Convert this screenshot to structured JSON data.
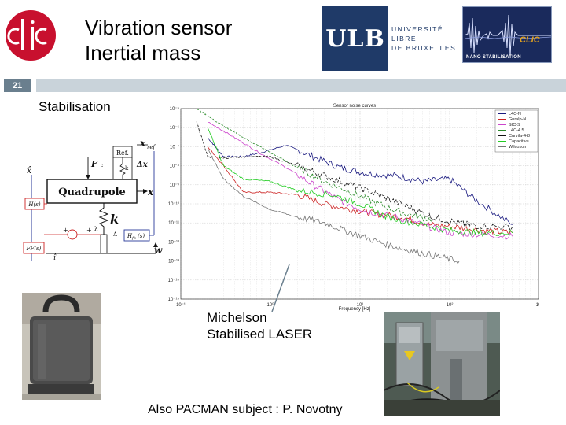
{
  "header": {
    "title_line1": "Vibration sensor",
    "title_line2": "Inertial mass",
    "logos": {
      "clic": "CLIC",
      "ulb_mark": "ULB",
      "ulb_text": [
        "UNIVERSITÉ",
        "LIBRE",
        "DE BRUXELLES"
      ],
      "nano_mark": "CLIC",
      "nano_caption": "NANO STABILISATION"
    }
  },
  "slide_number": "21",
  "subtitle": "Stabilisation",
  "diagram": {
    "labels": {
      "xhat": "x̂",
      "xref": "x",
      "xref_sub": "ref",
      "ref_box": "Ref.",
      "F": "F",
      "c": "c",
      "k_small": "k",
      "delta_x": "Δx",
      "quadrupole": "Quadrupole",
      "x": "x",
      "k": "k",
      "H_box": "H(s)",
      "Hfb_box": "H",
      "Hfb_sub": "fb",
      "Hfb_tail": "(s)",
      "FF_box": "FF(s)",
      "lambda": "λ",
      "delta": "Δ",
      "w": "w",
      "i_hat": "î",
      "plus1": "+",
      "plus2": "+"
    }
  },
  "captions": {
    "laser_line1": "Michelson",
    "laser_line2": "Stabilised LASER"
  },
  "footer_note": "Also PACMAN subject : P. Novotny",
  "colors": {
    "slide_box": "#6a7f8e",
    "slide_rule": "#c9d3da",
    "clic_red": "#c8102e",
    "ulb_blue": "#1f3a68",
    "nano_bg": "#1a2a5c"
  },
  "chart_data": {
    "type": "line",
    "title": "Sensor noise curves",
    "xlabel": "Frequency [Hz]",
    "ylabel": "",
    "xscale": "log",
    "yscale": "log",
    "xlim": [
      0.1,
      1000
    ],
    "ylim": [
      1e-15,
      1e-05
    ],
    "x_ticks": [
      "10⁻¹",
      "10⁰",
      "10¹",
      "10²",
      "10³"
    ],
    "x_tick_values": [
      0.1,
      1,
      10,
      100,
      1000
    ],
    "y_ticks": [
      "10⁻⁵",
      "10⁻⁶",
      "10⁻⁷",
      "10⁻⁸",
      "10⁻⁹",
      "10⁻¹⁰",
      "10⁻¹¹",
      "10⁻¹²",
      "10⁻¹³",
      "10⁻¹⁴",
      "10⁻¹⁵"
    ],
    "y_tick_values": [
      1e-05,
      1e-06,
      1e-07,
      1e-08,
      1e-09,
      1e-10,
      1e-11,
      1e-12,
      1e-13,
      1e-14,
      1e-15
    ],
    "grid": true,
    "legend_position": "top-right",
    "series": [
      {
        "name": "L4C-N",
        "color": "#1a1a80",
        "x": [
          0.2,
          0.3,
          0.5,
          0.8,
          1.5,
          3,
          6,
          12,
          25,
          50,
          100,
          200,
          500
        ],
        "y": [
          3e-07,
          3e-08,
          3e-08,
          5e-08,
          1.2e-07,
          3e-08,
          8e-09,
          4e-09,
          3e-09,
          1.5e-09,
          2e-09,
          1.5e-10,
          8e-12
        ]
      },
      {
        "name": "Guralp-N",
        "color": "#cc2222",
        "x": [
          0.2,
          0.3,
          0.5,
          1,
          2,
          4,
          8,
          15,
          30,
          60,
          120,
          250,
          500
        ],
        "y": [
          1e-07,
          1e-08,
          4e-10,
          4e-10,
          3e-10,
          1e-10,
          5e-11,
          3e-11,
          2e-11,
          8e-12,
          6e-12,
          4e-12,
          3e-12
        ]
      },
      {
        "name": "SIC-S",
        "color": "#cc44cc",
        "x": [
          0.2,
          0.4,
          0.8,
          1.5,
          3,
          6,
          12,
          25,
          50,
          100,
          200,
          500
        ],
        "y": [
          2e-06,
          3e-07,
          4e-08,
          8e-09,
          1e-09,
          1.5e-10,
          4e-11,
          2e-11,
          8e-12,
          3e-12,
          2.5e-12,
          2e-12
        ]
      },
      {
        "name": "L4C-4.5",
        "color": "#2a8a2a",
        "x": [
          0.15,
          0.25,
          0.5,
          1,
          2,
          4,
          8,
          16,
          32,
          64
        ],
        "y": [
          1e-05,
          2e-06,
          3e-07,
          5e-08,
          8e-09,
          1.5e-09,
          4e-10,
          1e-10,
          3e-11,
          1.5e-11
        ]
      },
      {
        "name": "Curvila-4-8",
        "color": "#111111",
        "x": [
          0.15,
          0.2,
          0.3,
          0.5,
          1,
          2,
          4,
          8,
          16,
          32,
          64,
          128,
          200,
          500
        ],
        "y": [
          2e-06,
          3e-08,
          2.5e-08,
          3e-08,
          3e-08,
          1e-08,
          3e-09,
          1e-09,
          3e-10,
          8e-11,
          2e-11,
          1e-11,
          7e-12,
          6e-12
        ]
      },
      {
        "name": "Capacitive",
        "color": "#22cc22",
        "x": [
          0.2,
          0.3,
          0.5,
          1,
          2,
          5,
          10,
          20,
          50,
          100,
          200,
          500
        ],
        "y": [
          1e-06,
          1e-08,
          2e-09,
          1.5e-09,
          5e-10,
          3e-10,
          1e-10,
          2e-11,
          8e-12,
          4e-12,
          3e-12,
          3e-12
        ]
      },
      {
        "name": "Wilcoxon",
        "color": "#777777",
        "x": [
          0.2,
          0.3,
          0.5,
          1,
          2,
          4,
          8,
          16,
          32,
          64,
          128
        ],
        "y": [
          8e-08,
          2e-09,
          2.5e-10,
          5e-11,
          2e-11,
          1e-11,
          3e-12,
          1e-12,
          4e-13,
          2e-13,
          1e-13
        ]
      }
    ]
  }
}
